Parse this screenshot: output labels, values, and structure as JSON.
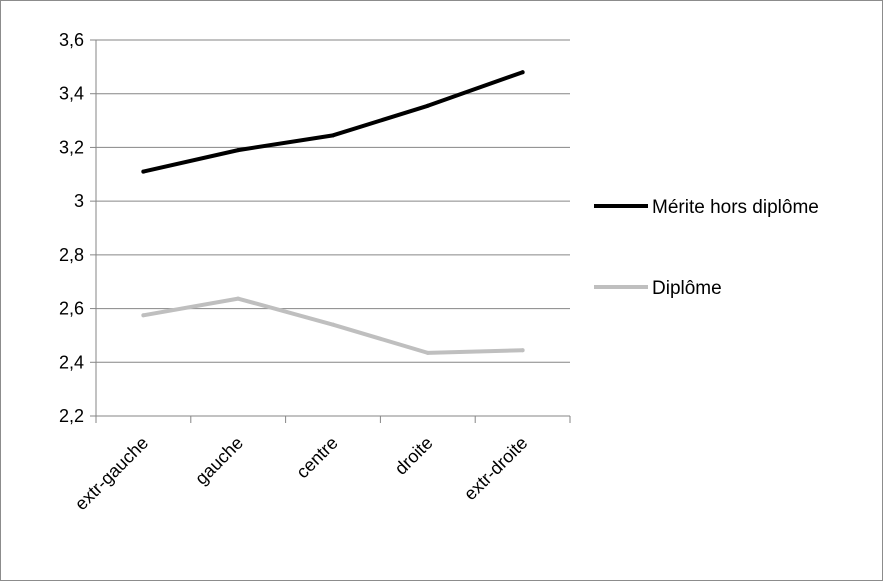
{
  "chart_data": {
    "type": "line",
    "categories": [
      "extr-gauche",
      "gauche",
      "centre",
      "droite",
      "extr-droite"
    ],
    "series": [
      {
        "name": "Mérite hors diplôme",
        "values": [
          3.11,
          3.19,
          3.245,
          3.355,
          3.48
        ],
        "color": "#000000"
      },
      {
        "name": "Diplôme",
        "values": [
          2.575,
          2.637,
          2.54,
          2.435,
          2.445
        ],
        "color": "#bfbfbf"
      }
    ],
    "y_ticks": [
      "2,2",
      "2,4",
      "2,6",
      "2,8",
      "3",
      "3,2",
      "3,4",
      "3,6"
    ],
    "ylim": [
      2.2,
      3.6
    ],
    "grid": true,
    "legend_position": "right"
  }
}
